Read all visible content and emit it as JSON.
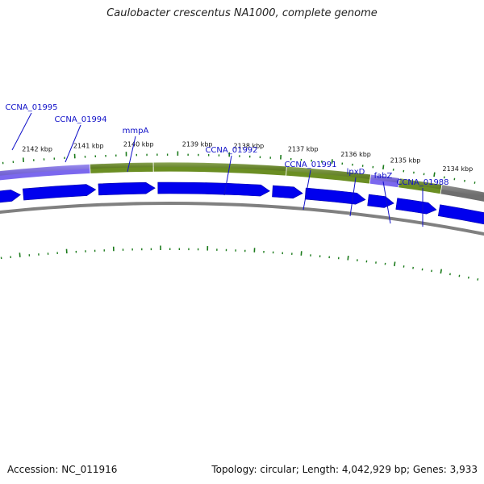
{
  "title": "Caulobacter crescentus NA1000, complete genome",
  "footer": {
    "accession": "Accession: NC_011916",
    "stats": "Topology: circular; Length: 4,042,929 bp; Genes: 3,933"
  },
  "colors": {
    "cds_arrow": "#0000ee",
    "backbone": "#808080",
    "tick": "#1a7a1a",
    "gene_label": "#1010c8",
    "band_gene": "#6b8e23",
    "band_other": "#7b68ee",
    "band_gray": "#6e6e6e"
  },
  "ticks": [
    "2142 kbp",
    "2141 kbp",
    "2140 kbp",
    "2139 kbp",
    "2138 kbp",
    "2137 kbp",
    "2136 kbp",
    "2135 kbp",
    "2134 kbp"
  ],
  "genes": [
    "CCNA_01995",
    "CCNA_01994",
    "mmpA",
    "CCNA_01992",
    "CCNA_01991",
    "lpxD",
    "fabZ",
    "CCNA_01988"
  ],
  "band_segments": [
    "purple",
    "green",
    "green",
    "green",
    "purple",
    "green",
    "gray"
  ],
  "cds_count": 8
}
